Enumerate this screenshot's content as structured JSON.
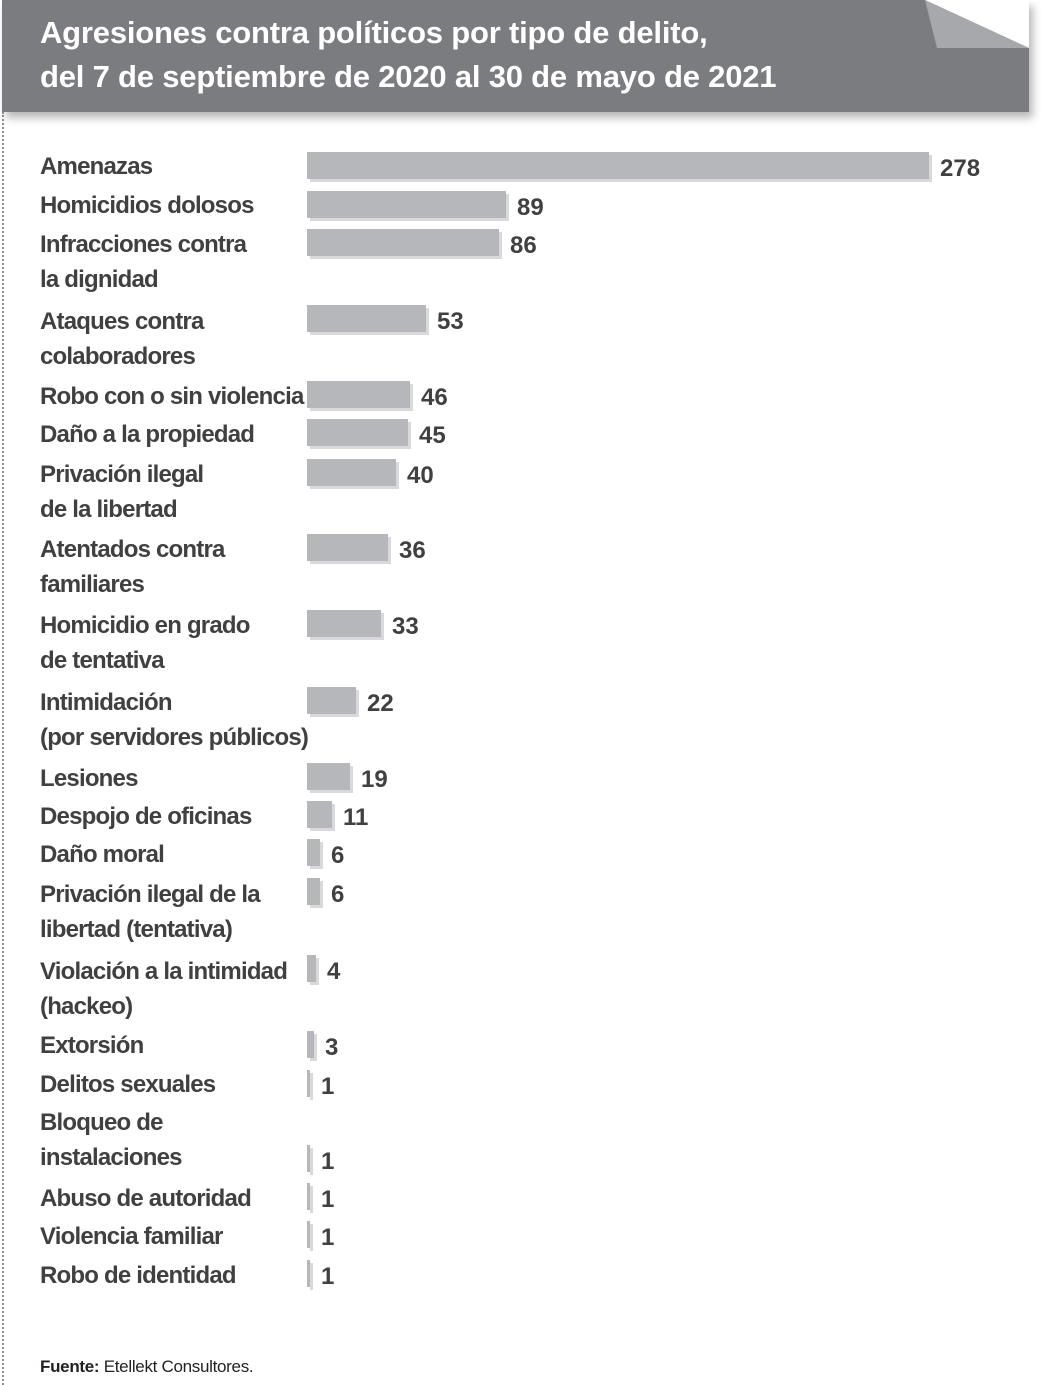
{
  "header": {
    "title_line_1": "Agresiones contra políticos por tipo de delito,",
    "title_line_2": "del 7 de septiembre de 2020 al 30 de mayo de 2021"
  },
  "footer": {
    "source_label": "Fuente:",
    "source_text": " Etellekt Consultores."
  },
  "colors": {
    "header_bg": "#7b7c80",
    "bar": "#b6b7ba",
    "text": "#404041"
  },
  "chart_data": {
    "type": "bar",
    "orientation": "horizontal",
    "title": "Agresiones contra políticos por tipo de delito, del 7 de septiembre de 2020 al 30 de mayo de 2021",
    "categories": [
      [
        "Amenazas"
      ],
      [
        "Homicidios dolosos"
      ],
      [
        "Infracciones contra",
        "la dignidad"
      ],
      [
        "Ataques contra",
        "colaboradores"
      ],
      [
        "Robo con o sin violencia"
      ],
      [
        "Daño a la propiedad"
      ],
      [
        "Privación ilegal",
        "de la libertad"
      ],
      [
        "Atentados contra",
        "familiares"
      ],
      [
        "Homicidio en grado",
        "de tentativa"
      ],
      [
        "Intimidación",
        "(por servidores públicos)"
      ],
      [
        "Lesiones"
      ],
      [
        "Despojo de oficinas"
      ],
      [
        "Daño moral"
      ],
      [
        "Privación ilegal de la",
        "libertad (tentativa)"
      ],
      [
        "Violación a la intimidad",
        "(hackeo)"
      ],
      [
        "Extorsión"
      ],
      [
        "Delitos sexuales"
      ],
      [
        "Bloqueo de",
        "instalaciones"
      ],
      [
        "Abuso de autoridad"
      ],
      [
        "Violencia familiar"
      ],
      [
        "Robo de identidad"
      ]
    ],
    "values": [
      278,
      89,
      86,
      53,
      46,
      45,
      40,
      36,
      33,
      22,
      19,
      11,
      6,
      6,
      4,
      3,
      1,
      1,
      1,
      1,
      1
    ],
    "value_labels": [
      "278",
      "89",
      "86",
      "53",
      "46",
      "45",
      "40",
      "36",
      "33",
      "22",
      "19",
      "11",
      "6",
      "6",
      "4",
      "3",
      "1",
      "1",
      "1",
      "1",
      "1"
    ],
    "xlim": [
      0,
      278
    ],
    "grid": false,
    "legend": false
  }
}
